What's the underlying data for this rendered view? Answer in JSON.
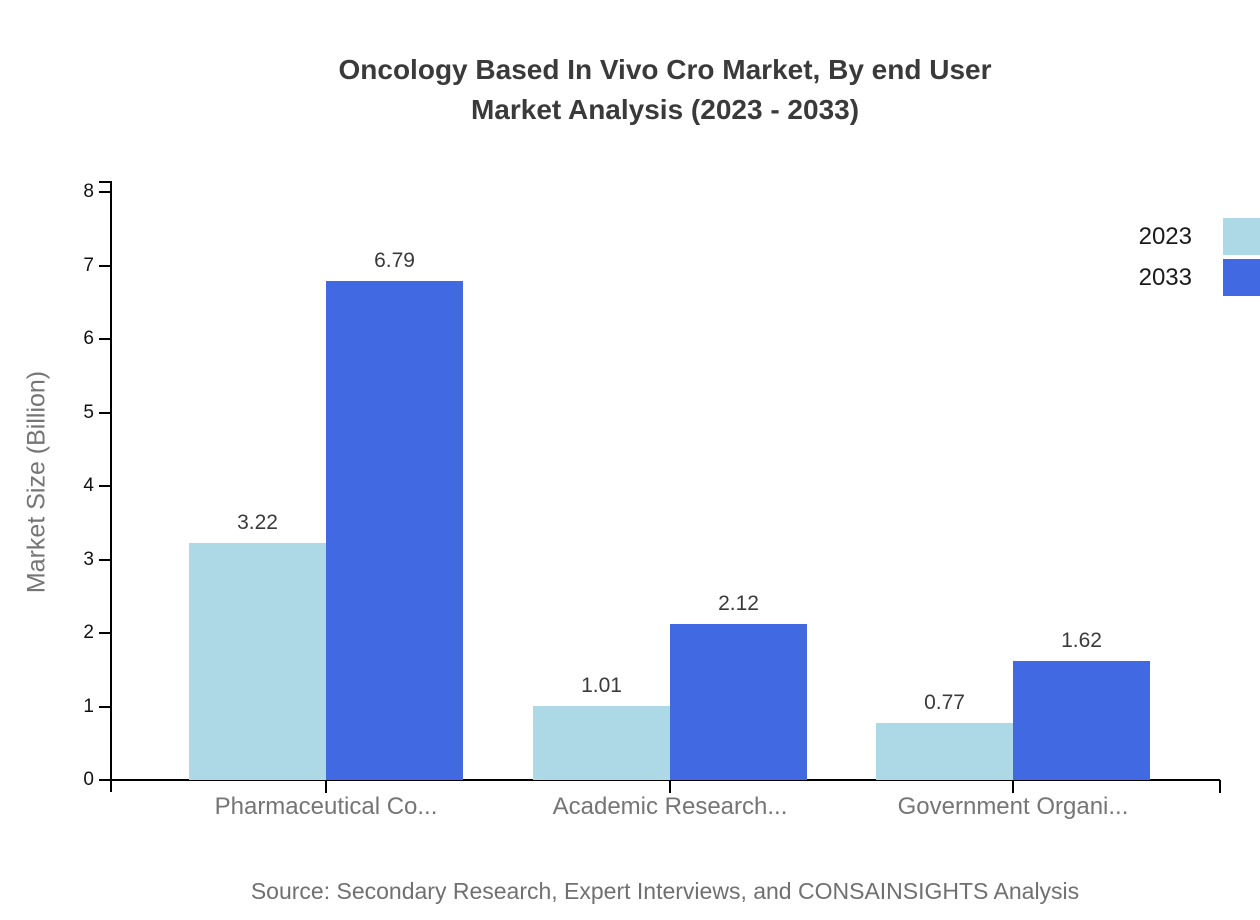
{
  "title": {
    "line1": "Oncology Based In Vivo Cro Market, By end User",
    "line2": "Market Analysis (2023 - 2033)"
  },
  "source": "Source: Secondary Research, Expert Interviews, and CONSAINSIGHTS Analysis",
  "chart_data": {
    "type": "bar",
    "title": "Oncology Based In Vivo Cro Market, By end User Market Analysis (2023 - 2033)",
    "categories": [
      "Pharmaceutical Co...",
      "Academic Research...",
      "Government Organi..."
    ],
    "series": [
      {
        "name": "2023",
        "color": "#ADD8E6",
        "values": [
          3.22,
          1.01,
          0.77
        ]
      },
      {
        "name": "2033",
        "color": "#4169E1",
        "values": [
          6.79,
          2.12,
          1.62
        ]
      }
    ],
    "xlabel": "",
    "ylabel": "Market Size (Billion)",
    "ylim": [
      0,
      8
    ],
    "yticks": [
      0,
      1,
      2,
      3,
      4,
      5,
      6,
      7,
      8
    ],
    "grid": false,
    "legend_position": "top-right",
    "value_labels": true,
    "value_label_format": "0.00"
  },
  "colors": {
    "axis": "#000000",
    "title_text": "#3a3a3a",
    "tick_text": "#111111",
    "muted_text": "#757575",
    "source_text": "#707070",
    "series_2023": "#ADD8E6",
    "series_2033": "#4169E1",
    "background": "#ffffff"
  }
}
